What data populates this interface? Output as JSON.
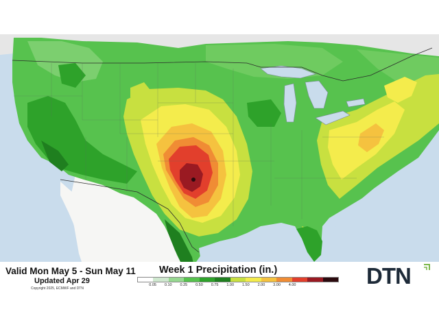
{
  "header": {
    "valid_text": "Valid Mon May 5 - Sun May 11",
    "updated_text": "Updated Apr 29",
    "copyright_text": "Copyright 2025, ECMWF and DTN",
    "title": "Week 1 Precipitation (in.)"
  },
  "legend": {
    "thresholds": [
      "0.05",
      "0.10",
      "0.25",
      "0.50",
      "0.75",
      "1.00",
      "1.50",
      "2.00",
      "3.00",
      "4.00"
    ],
    "colors": [
      "#ffffff",
      "#cfe8cf",
      "#97d891",
      "#57c24e",
      "#2ea22a",
      "#1f7f1f",
      "#c8e040",
      "#f4ec4c",
      "#f5c23f",
      "#f08c34",
      "#e23f2c",
      "#9a1a22",
      "#2b0a0e"
    ]
  },
  "logo": {
    "text": "DTN",
    "icon": "dtn-logo-icon"
  },
  "map": {
    "region": "Continental United States",
    "colors": {
      "water": "#c9dcec",
      "land_outside": "#ececec",
      "mexico_dry": "#f6f6f4"
    }
  }
}
